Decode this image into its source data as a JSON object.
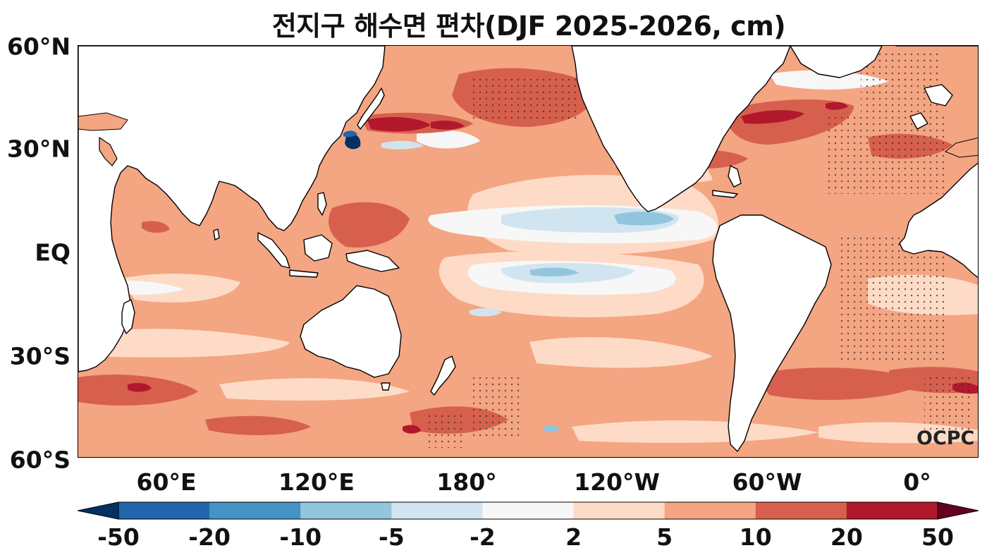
{
  "title": "전지구 해수면 편차(DJF 2025-2026, cm)",
  "map": {
    "extent": {
      "lon_min": 20,
      "lon_max": 380,
      "lat_min": -60,
      "lat_max": 60
    },
    "lat_labels": [
      "60°N",
      "30°N",
      "EQ",
      "30°S",
      "60°S"
    ],
    "lon_labels": [
      "60°E",
      "120°E",
      "180°",
      "120°W",
      "60°W",
      "0°"
    ],
    "watermark": "OCPC",
    "background_fill": "#f2a582"
  },
  "colorbar": {
    "levels": [
      "-50",
      "-20",
      "-10",
      "-5",
      "-2",
      "2",
      "5",
      "10",
      "20",
      "50"
    ],
    "colors": [
      "#053061",
      "#2166ac",
      "#4393c3",
      "#92c5de",
      "#d1e5f0",
      "#f7f7f7",
      "#fddbc7",
      "#f4a582",
      "#d6604d",
      "#b2182b",
      "#67001f"
    ]
  }
}
